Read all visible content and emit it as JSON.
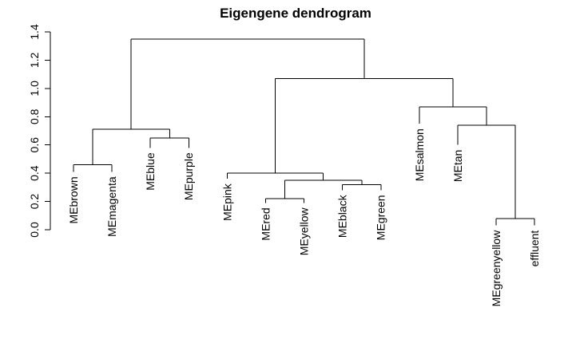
{
  "chart_data": {
    "type": "dendrogram",
    "title": "Eigengene dendrogram",
    "xlabel": "",
    "ylabel": "",
    "ylim": [
      0,
      1.4
    ],
    "y_ticks": [
      "0.0",
      "0.2",
      "0.4",
      "0.6",
      "0.8",
      "1.0",
      "1.2",
      "1.4"
    ],
    "y_tick_values": [
      0,
      0.2,
      0.4,
      0.6,
      0.8,
      1.0,
      1.2,
      1.4
    ],
    "grid": false,
    "leaves": [
      {
        "name": "MEbrown",
        "top": 0.41
      },
      {
        "name": "MEmagenta",
        "top": 0.41
      },
      {
        "name": "MEblue",
        "top": 0.58
      },
      {
        "name": "MEpurple",
        "top": 0.58
      },
      {
        "name": "MEpink",
        "top": 0.36
      },
      {
        "name": "MEred",
        "top": 0.19
      },
      {
        "name": "MEyellow",
        "top": 0.19
      },
      {
        "name": "MEblack",
        "top": 0.28
      },
      {
        "name": "MEgreen",
        "top": 0.28
      },
      {
        "name": "MEsalmon",
        "top": 0.75
      },
      {
        "name": "MEtan",
        "top": 0.6
      },
      {
        "name": "MEgreenyellow",
        "top": 0.03
      },
      {
        "name": "effluent",
        "top": 0.03
      }
    ],
    "merges": [
      {
        "left": "L0",
        "right": "L1",
        "height": 0.46
      },
      {
        "left": "L2",
        "right": "L3",
        "height": 0.65
      },
      {
        "left": "N0",
        "right": "N1",
        "height": 0.71
      },
      {
        "left": "L5",
        "right": "L6",
        "height": 0.22
      },
      {
        "left": "L7",
        "right": "L8",
        "height": 0.32
      },
      {
        "left": "N3",
        "right": "N4",
        "height": 0.35
      },
      {
        "left": "L4",
        "right": "N5",
        "height": 0.4
      },
      {
        "left": "L11",
        "right": "L12",
        "height": 0.08
      },
      {
        "left": "L10",
        "right": "N7",
        "height": 0.74
      },
      {
        "left": "L9",
        "right": "N8",
        "height": 0.87
      },
      {
        "left": "N6",
        "right": "N9",
        "height": 1.07
      },
      {
        "left": "N2",
        "right": "N10",
        "height": 1.35
      }
    ]
  }
}
